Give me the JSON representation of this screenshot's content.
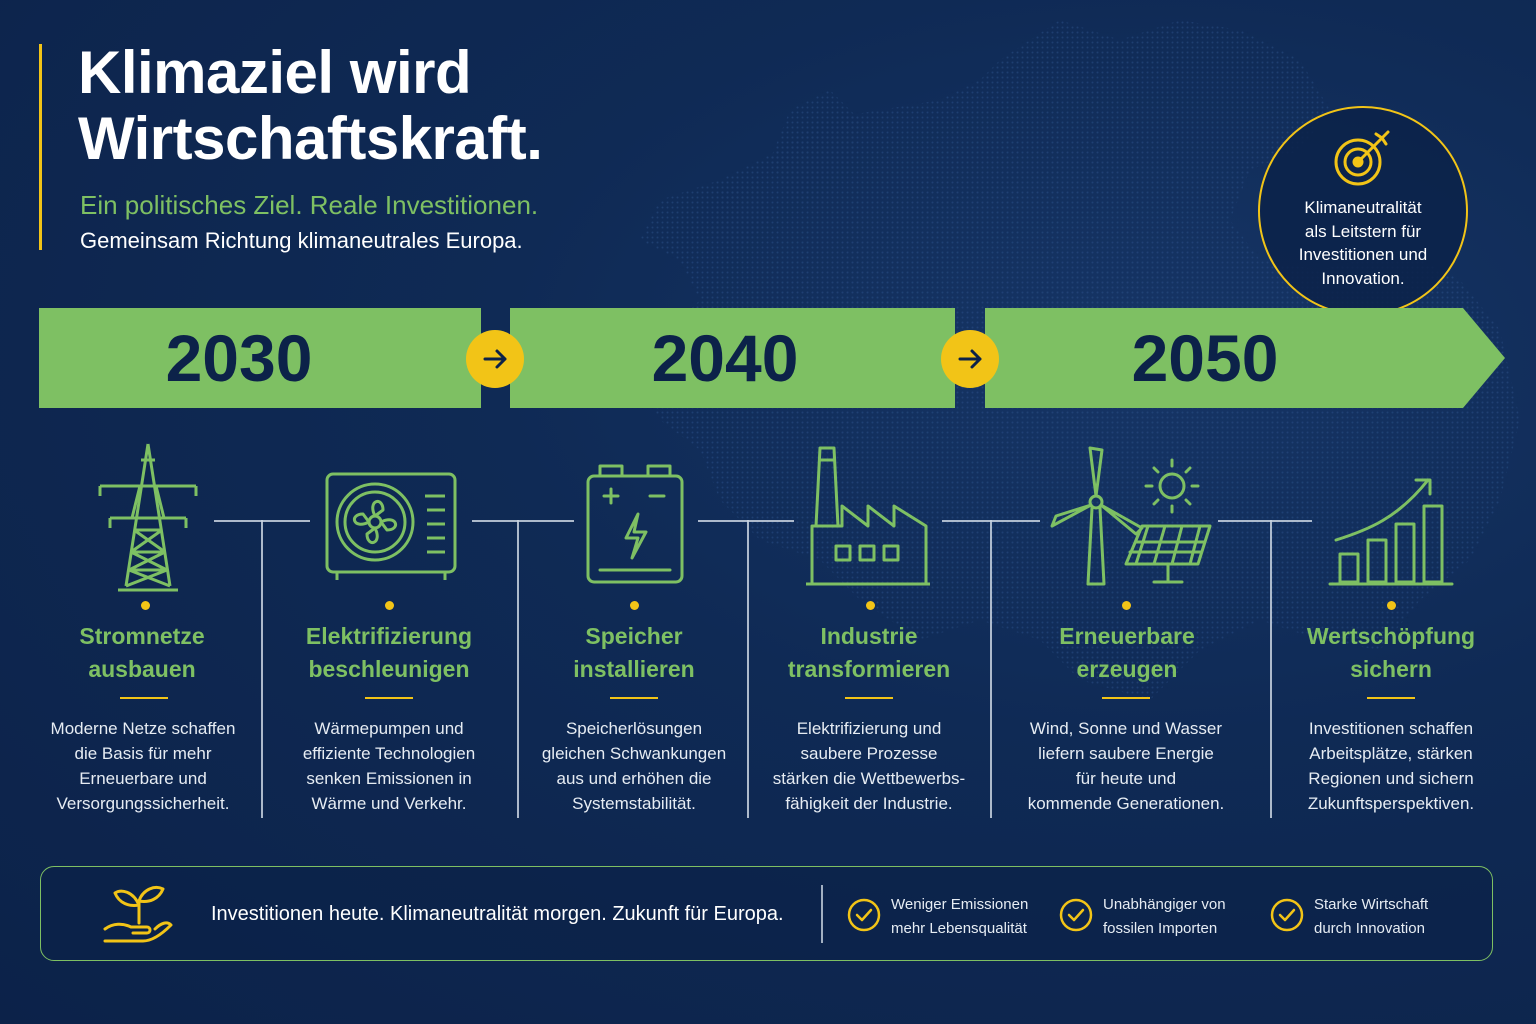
{
  "header": {
    "title_line1": "Klimaziel wird",
    "title_line2": "Wirtschaftskraft.",
    "subtitle": "Ein politisches Ziel. Reale Investitionen.",
    "subtitle2": "Gemeinsam Richtung klimaneutrales Europa."
  },
  "goal": {
    "icon": "target-arrow-icon",
    "lines": [
      "Klimaneutralität",
      "als Leitstern für",
      "Investitionen und",
      "Innovation."
    ]
  },
  "timeline": {
    "years": [
      "2030",
      "2040",
      "2050"
    ]
  },
  "columns": [
    {
      "icon": "power-pylon-icon",
      "title": [
        "Stromnetze",
        "ausbauen"
      ],
      "text": [
        "Moderne Netze schaffen",
        "die Basis für mehr",
        "Erneuerbare und",
        "Versorgungssicherheit."
      ]
    },
    {
      "icon": "heat-pump-icon",
      "title": [
        "Elektrifizierung",
        "beschleunigen"
      ],
      "text": [
        "Wärmepumpen und",
        "effiziente Technologien",
        "senken Emissionen in",
        "Wärme und Verkehr."
      ]
    },
    {
      "icon": "battery-icon",
      "title": [
        "Speicher",
        "installieren"
      ],
      "text": [
        "Speicherlösungen",
        "gleichen Schwankungen",
        "aus und erhöhen die",
        "Systemstabilität."
      ]
    },
    {
      "icon": "factory-icon",
      "title": [
        "Industrie",
        "transformieren"
      ],
      "text": [
        "Elektrifizierung und",
        "saubere Prozesse",
        "stärken die Wettbewerbs-",
        "fähigkeit der Industrie."
      ]
    },
    {
      "icon": "wind-solar-icon",
      "title": [
        "Erneuerbare",
        "erzeugen"
      ],
      "text": [
        "Wind, Sonne und Wasser",
        "liefern saubere Energie",
        "für heute und",
        "kommende Generationen."
      ]
    },
    {
      "icon": "growth-chart-icon",
      "title": [
        "Wertschöpfung",
        "sichern"
      ],
      "text": [
        "Investitionen schaffen",
        "Arbeitsplätze, stärken",
        "Regionen und sichern",
        "Zukunftsperspektiven."
      ]
    }
  ],
  "footer": {
    "icon": "hand-seedling-icon",
    "main": "Investitionen heute. Klimaneutralität morgen. Zukunft für Europa.",
    "benefits": [
      {
        "lines": [
          "Weniger Emissionen",
          "mehr Lebensqualität"
        ]
      },
      {
        "lines": [
          "Unabhängiger von",
          "fossilen Importen"
        ]
      },
      {
        "lines": [
          "Starke Wirtschaft",
          "durch Innovation"
        ]
      }
    ]
  },
  "colors": {
    "background": "#0f2a55",
    "green": "#7ec063",
    "yellow": "#f2c417",
    "text": "#ffffff"
  }
}
